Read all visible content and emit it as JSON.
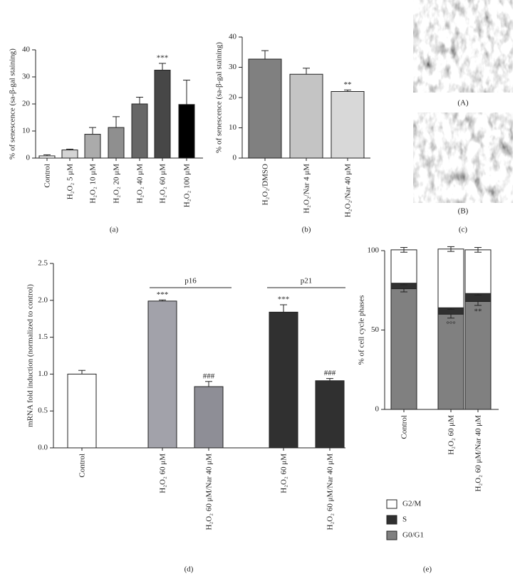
{
  "chart_data": [
    {
      "type": "bar",
      "label": "(a)",
      "ylabel": "% of senescence (sa-β-gal staining)",
      "categories": [
        "Control",
        "H₂O₂ 5 μM",
        "H₂O₂ 10 μM",
        "H₂O₂ 20 μM",
        "H₂O₂ 40 μM",
        "H₂O₂ 60 μM",
        "H₂O₂ 100 μM"
      ],
      "values": [
        0.8,
        3,
        8.8,
        11.3,
        20,
        32.5,
        19.8
      ],
      "errors": [
        0.4,
        0.3,
        2.5,
        4,
        2.5,
        2.5,
        9
      ],
      "annotations": [
        null,
        null,
        null,
        null,
        null,
        "***",
        null
      ],
      "colors": [
        "#ffffff",
        "#d4d4d4",
        "#ababab",
        "#8f8f8f",
        "#676767",
        "#474747",
        "#000000"
      ],
      "ylim": [
        0,
        40
      ],
      "yticks": [
        0,
        10,
        20,
        30,
        40
      ]
    },
    {
      "type": "bar",
      "label": "(b)",
      "ylabel": "% of senescence (sa-β-gal staining)",
      "categories": [
        "H₂O₂/DMSO",
        "H₂O₂/Nar 4 μM",
        "H₂O₂/Nar 40 μM"
      ],
      "values": [
        32.7,
        27.7,
        22
      ],
      "errors": [
        2.8,
        2,
        0.5
      ],
      "annotations": [
        null,
        null,
        "**"
      ],
      "colors": [
        "#808080",
        "#c4c4c4",
        "#d8d8d8"
      ],
      "ylim": [
        0,
        40
      ],
      "yticks": [
        0,
        10,
        20,
        30,
        40
      ]
    },
    {
      "type": "images",
      "label": "(c)",
      "images": [
        {
          "label": "(A)"
        },
        {
          "label": "(B)"
        }
      ]
    },
    {
      "type": "bar",
      "label": "(d)",
      "ylabel": "mRNA fold induction (normalized to control)",
      "categories": [
        "Control",
        "H₂O₂ 60 μM",
        "H₂O₂ 60 μM/Nar 40 μM",
        "H₂O₂ 60 μM",
        "H₂O₂ 60 μM/Nar 40 μM"
      ],
      "values": [
        1.0,
        1.99,
        0.83,
        1.84,
        0.91
      ],
      "errors": [
        0.05,
        0.015,
        0.07,
        0.1,
        0.03
      ],
      "annotations": [
        null,
        "***",
        "###",
        "***",
        "###"
      ],
      "group_labels": [
        "p16",
        "p21"
      ],
      "colors": [
        "#ffffff",
        "#a2a2aa",
        "#8e8e96",
        "#303030",
        "#303030"
      ],
      "ylim": [
        0,
        2.5
      ],
      "yticks": [
        {
          "value": 0,
          "label": "0.0"
        },
        {
          "value": 0.5,
          "label": "0.5"
        },
        {
          "value": 1,
          "label": "1.0"
        },
        {
          "value": 1.5,
          "label": "1.5"
        },
        {
          "value": 2,
          "label": "2.0"
        },
        {
          "value": 2.5,
          "label": "2.5"
        }
      ]
    },
    {
      "type": "stacked_bar",
      "label": "(e)",
      "ylabel": "% of cell cycle phases",
      "categories": [
        "Control",
        "H₂O₂ 60 μM",
        "H₂O₂ 60 μM/Nar 40 μM"
      ],
      "series": [
        {
          "name": "G0/G1",
          "color": "#808080",
          "values": [
            76,
            60,
            68
          ],
          "errors": [
            2,
            2.5,
            2.5
          ],
          "annotations": [
            null,
            "°°°",
            "**"
          ]
        },
        {
          "name": "S",
          "color": "#303030",
          "values": [
            3.5,
            4,
            5
          ],
          "errors": [
            1,
            1,
            1
          ],
          "annotations": [
            null,
            "°°°",
            "**"
          ]
        },
        {
          "name": "G2/M",
          "color": "#ffffff",
          "values": [
            21,
            37,
            27.5
          ],
          "errors": [
            1.5,
            1.5,
            1.5
          ],
          "annotations": [
            null,
            null,
            null
          ]
        }
      ],
      "legend": "bottom",
      "ylim": [
        0,
        100
      ],
      "yticks": [
        0,
        50,
        100
      ]
    }
  ]
}
